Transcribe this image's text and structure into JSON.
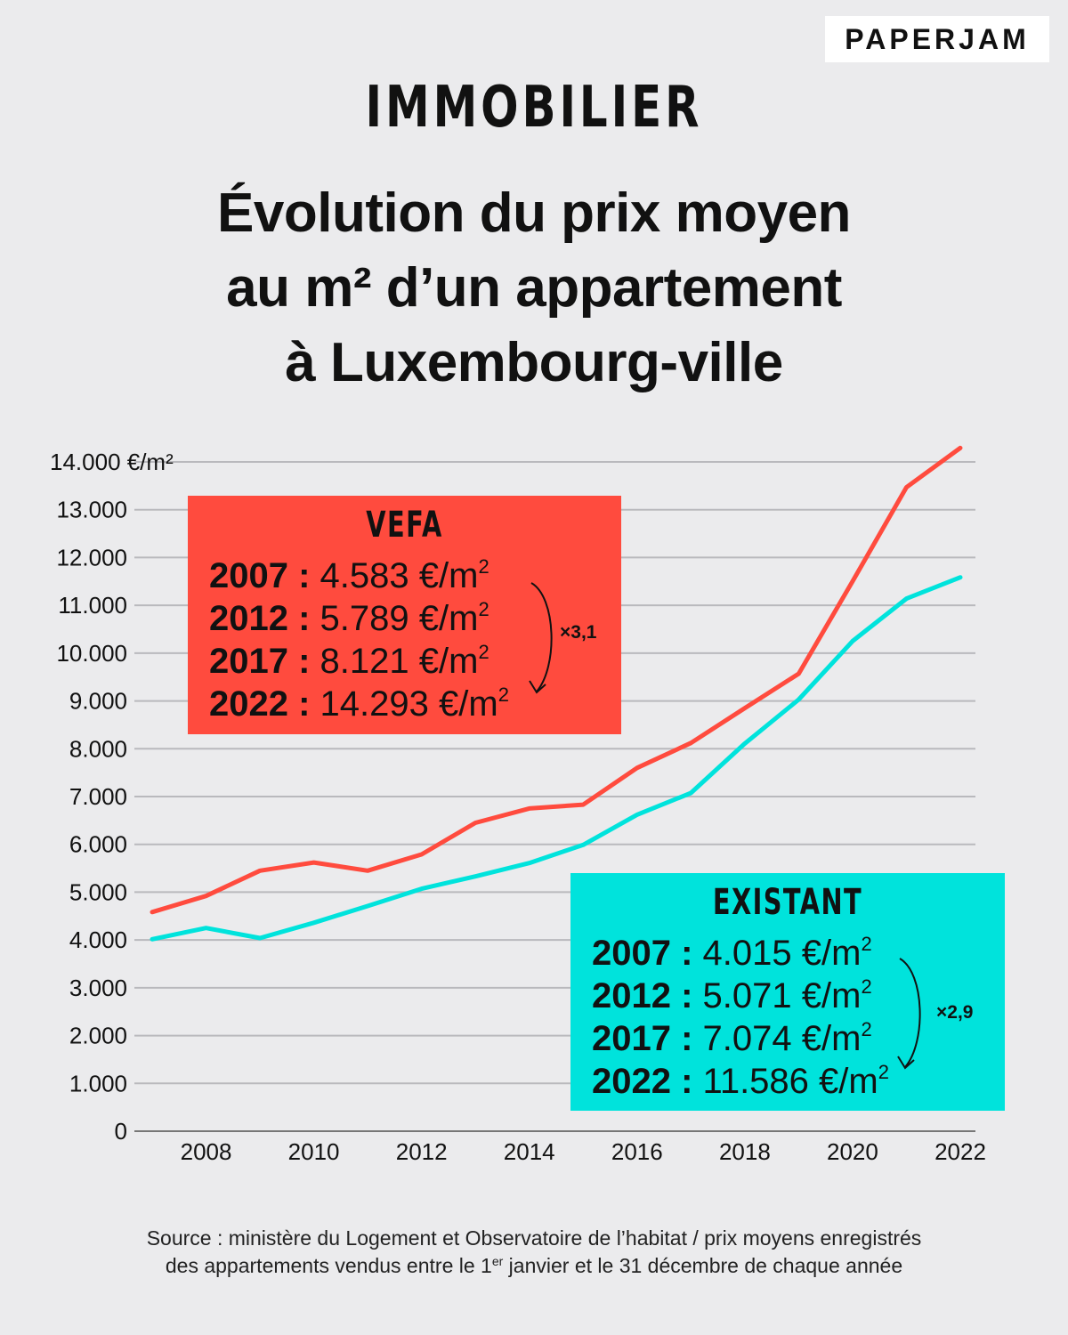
{
  "brand": "PAPERJAM",
  "kicker": "IMMOBILIER",
  "title_lines": [
    "Évolution du prix moyen",
    "au m² d’un appartement",
    "à Luxembourg-ville"
  ],
  "colors": {
    "background": "#ebebed",
    "vefa": "#ff4b3e",
    "existant": "#00e3dc",
    "grid": "#b9b9bd"
  },
  "vefa_box": {
    "title": "VEFA",
    "rows": [
      {
        "year": "2007 :",
        "value": "4.583 €/m",
        "sup": "2"
      },
      {
        "year": "2012 :",
        "value": "5.789 €/m",
        "sup": "2"
      },
      {
        "year": "2017 :",
        "value": "8.121 €/m",
        "sup": "2"
      },
      {
        "year": "2022 :",
        "value": "14.293 €/m",
        "sup": "2"
      }
    ],
    "multiplier": "×3,1"
  },
  "existant_box": {
    "title": "EXISTANT",
    "rows": [
      {
        "year": "2007 :",
        "value": "4.015 €/m",
        "sup": "2"
      },
      {
        "year": "2012 :",
        "value": "5.071 €/m",
        "sup": "2"
      },
      {
        "year": "2017 :",
        "value": "7.074 €/m",
        "sup": "2"
      },
      {
        "year": "2022 :",
        "value": "11.586 €/m",
        "sup": "2"
      }
    ],
    "multiplier": "×2,9"
  },
  "source": {
    "line1": "Source : ministère du Logement et Observatoire de l’habitat / prix moyens enregistrés",
    "line2_a": "des appartements vendus entre le 1",
    "line2_sup": "er",
    "line2_b": " janvier et le 31 décembre de chaque année"
  },
  "chart_data": {
    "type": "line",
    "x": [
      2007,
      2008,
      2009,
      2010,
      2011,
      2012,
      2013,
      2014,
      2015,
      2016,
      2017,
      2018,
      2019,
      2020,
      2021,
      2022
    ],
    "series": [
      {
        "name": "VEFA",
        "values": [
          4583,
          4920,
          5450,
          5620,
          5450,
          5789,
          6450,
          6750,
          6830,
          7600,
          8121,
          8850,
          9570,
          11500,
          13470,
          14293
        ]
      },
      {
        "name": "EXISTANT",
        "values": [
          4015,
          4250,
          4040,
          4360,
          4710,
          5071,
          5330,
          5610,
          5990,
          6620,
          7074,
          8110,
          9030,
          10250,
          11140,
          11586
        ]
      }
    ],
    "ylim": [
      0,
      14000
    ],
    "xlim": [
      2007,
      2022
    ],
    "y_ticks": [
      0,
      1000,
      2000,
      3000,
      4000,
      5000,
      6000,
      7000,
      8000,
      9000,
      10000,
      11000,
      12000,
      13000,
      14000
    ],
    "y_tick_labels": [
      "0",
      "1.000",
      "2.000",
      "3.000",
      "4.000",
      "5.000",
      "6.000",
      "7.000",
      "8.000",
      "9.000",
      "10.000",
      "11.000",
      "12.000",
      "13.000",
      "14.000 €/m²"
    ],
    "x_ticks": [
      2008,
      2010,
      2012,
      2014,
      2016,
      2018,
      2020,
      2022
    ],
    "x_tick_labels": [
      "2008",
      "2010",
      "2012",
      "2014",
      "2016",
      "2018",
      "2020",
      "2022"
    ],
    "grid": "horizontal",
    "legend": "boxes"
  }
}
